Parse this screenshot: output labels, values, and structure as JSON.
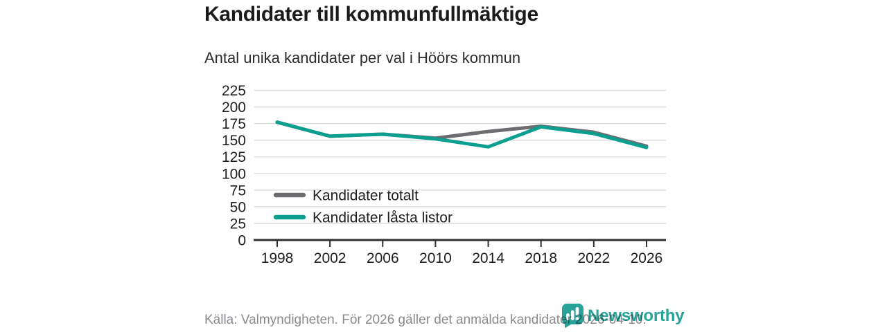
{
  "page": {
    "title": "Kandidater till kommunfullmäktige",
    "subtitle": "Antal unika kandidater per val i Höörs kommun",
    "source_note": "Källa: Valmyndigheten. För 2026 gäller det anmälda kandidater 2026-04-10.",
    "brand": {
      "name": "Newsworthy",
      "color": "#29a399",
      "icon": "bar-chart-speech-bubble-icon"
    }
  },
  "chart_data": {
    "type": "line",
    "title": "Kandidater till kommunfullmäktige",
    "subtitle": "Antal unika kandidater per val i Höörs kommun",
    "categories": [
      "1998",
      "2002",
      "2006",
      "2010",
      "2014",
      "2018",
      "2022",
      "2026"
    ],
    "series": [
      {
        "name": "Kandidater totalt",
        "color": "#6d6d71",
        "values": [
          177,
          156,
          159,
          153,
          163,
          171,
          162,
          141
        ]
      },
      {
        "name": "Kandidater låsta listor",
        "color": "#0a9f8f",
        "values": [
          177,
          156,
          159,
          152,
          140,
          170,
          160,
          139
        ]
      }
    ],
    "xlabel": "",
    "ylabel": "",
    "ylim": [
      0,
      225
    ],
    "yticks": [
      0,
      25,
      50,
      75,
      100,
      125,
      150,
      175,
      200,
      225
    ],
    "grid": true,
    "grid_color": "#dadada",
    "axis_color": "#2f2f2f",
    "tick_label_color": "#202020",
    "legend_position": "inside-bottom-left"
  }
}
